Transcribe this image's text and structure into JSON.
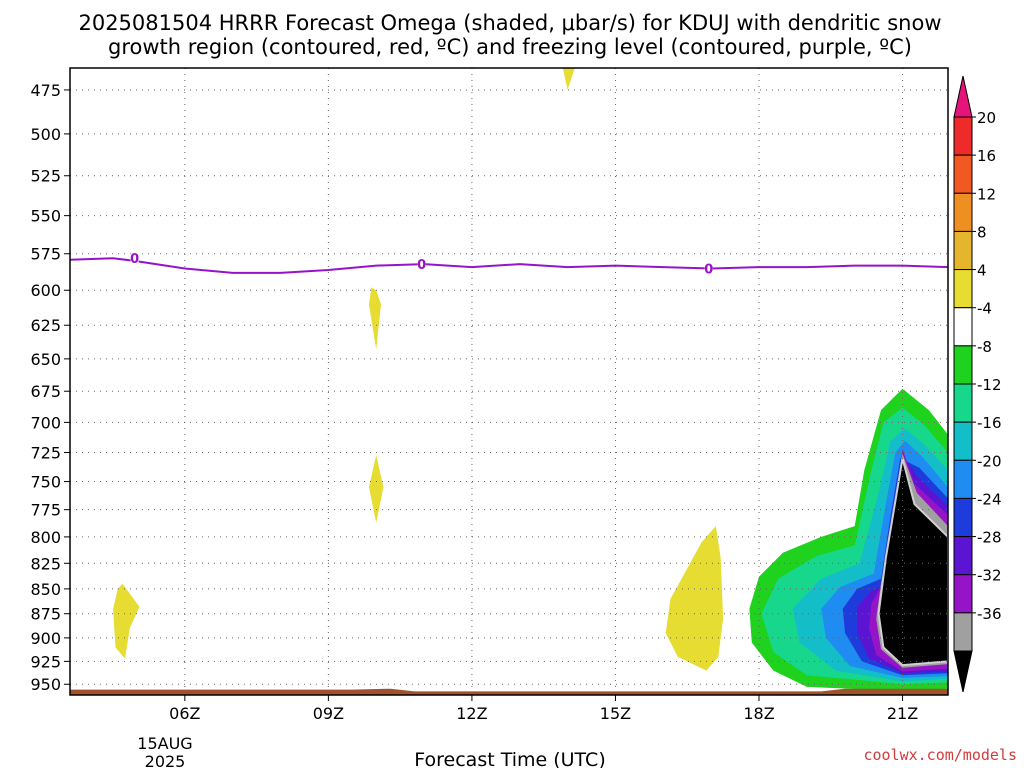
{
  "chart_data": {
    "type": "heatmap",
    "title_line1": "2025081504 HRRR Forecast Omega (shaded, μbar/s) for KDUJ with dendritic snow",
    "title_line2": "growth region (contoured, red, ºC) and freezing level (contoured, purple, ºC)",
    "xlabel": "Forecast Time (UTC)",
    "credit": "coolwx.com/models",
    "date_label_1": "15AUG",
    "date_label_2": "2025",
    "y_axis": {
      "ticks": [
        475,
        500,
        525,
        550,
        575,
        600,
        625,
        650,
        675,
        700,
        725,
        750,
        775,
        800,
        825,
        850,
        875,
        900,
        925,
        950
      ],
      "pressure_range": [
        463,
        962
      ],
      "inverted": true,
      "log_scale": true
    },
    "x_axis": {
      "range_hours": [
        3.6,
        21.95
      ],
      "ticks": [
        {
          "hour": 6,
          "label": "06Z"
        },
        {
          "hour": 9,
          "label": "09Z"
        },
        {
          "hour": 12,
          "label": "12Z"
        },
        {
          "hour": 15,
          "label": "15Z"
        },
        {
          "hour": 18,
          "label": "18Z"
        },
        {
          "hour": 21,
          "label": "21Z"
        }
      ]
    },
    "grid": true,
    "colorbar": {
      "labels": [
        "20",
        "16",
        "12",
        "8",
        "4",
        "-4",
        "-8",
        "-12",
        "-16",
        "-20",
        "-24",
        "-28",
        "-32",
        "-36"
      ],
      "colors": [
        "#ee2a2a",
        "#f05a22",
        "#ee8f22",
        "#e6b52e",
        "#e6dc32",
        "#ffffff",
        "#1ed21e",
        "#17d78c",
        "#14bec8",
        "#1e8cf0",
        "#1e3cdc",
        "#5a14d2",
        "#9614c8",
        "#a0a0a0"
      ],
      "top_arrow_color": "#e6147a",
      "bottom_arrow_color": "#000000"
    },
    "freezing_level": {
      "color": "#9614c8",
      "label": "0",
      "points": [
        [
          3.6,
          579
        ],
        [
          4.5,
          578
        ],
        [
          5.0,
          580
        ],
        [
          6.0,
          585
        ],
        [
          7.0,
          588
        ],
        [
          8.0,
          588
        ],
        [
          9.0,
          586
        ],
        [
          10.0,
          583
        ],
        [
          11.0,
          582
        ],
        [
          12.0,
          584
        ],
        [
          13.0,
          582
        ],
        [
          14.0,
          584
        ],
        [
          15.0,
          583
        ],
        [
          16.0,
          584
        ],
        [
          17.0,
          585
        ],
        [
          18.0,
          584
        ],
        [
          19.0,
          584
        ],
        [
          20.0,
          583
        ],
        [
          21.0,
          583
        ],
        [
          21.95,
          584
        ]
      ],
      "label_points": [
        [
          4.95,
          578
        ],
        [
          10.95,
          582
        ],
        [
          16.95,
          585
        ]
      ]
    },
    "omega_areas": [
      {
        "value": 4,
        "color": "#e6dc32",
        "points": [
          [
            4.7,
            845
          ],
          [
            5.05,
            868
          ],
          [
            4.85,
            890
          ],
          [
            4.75,
            922
          ],
          [
            4.55,
            910
          ],
          [
            4.5,
            870
          ],
          [
            4.6,
            850
          ]
        ]
      },
      {
        "value": 4,
        "color": "#e6dc32",
        "points": [
          [
            10.0,
            600
          ],
          [
            10.1,
            610
          ],
          [
            10.0,
            643
          ],
          [
            9.85,
            610
          ],
          [
            9.9,
            598
          ]
        ]
      },
      {
        "value": 4,
        "color": "#e6dc32",
        "points": [
          [
            10.0,
            727
          ],
          [
            10.15,
            755
          ],
          [
            10.0,
            787
          ],
          [
            9.85,
            755
          ]
        ]
      },
      {
        "value": 4,
        "color": "#e6dc32",
        "points": [
          [
            13.9,
            463
          ],
          [
            14.15,
            463
          ],
          [
            14.0,
            475
          ]
        ]
      },
      {
        "value": 4,
        "color": "#e6dc32",
        "points": [
          [
            17.1,
            790
          ],
          [
            17.2,
            820
          ],
          [
            17.25,
            880
          ],
          [
            17.15,
            920
          ],
          [
            16.9,
            935
          ],
          [
            16.3,
            920
          ],
          [
            16.05,
            895
          ],
          [
            16.15,
            860
          ],
          [
            16.5,
            830
          ],
          [
            16.8,
            805
          ]
        ]
      },
      {
        "value": -4,
        "color": "#1ed21e",
        "points": [
          [
            21.95,
            955
          ],
          [
            21.2,
            958
          ],
          [
            19.0,
            953
          ],
          [
            18.3,
            935
          ],
          [
            17.85,
            905
          ],
          [
            17.8,
            870
          ],
          [
            18.0,
            838
          ],
          [
            18.5,
            815
          ],
          [
            19.3,
            800
          ],
          [
            20.0,
            790
          ],
          [
            20.2,
            740
          ],
          [
            20.55,
            690
          ],
          [
            21.0,
            673
          ],
          [
            21.55,
            690
          ],
          [
            21.95,
            710
          ]
        ]
      },
      {
        "value": -8,
        "color": "#17d78c",
        "points": [
          [
            21.95,
            948
          ],
          [
            21.0,
            950
          ],
          [
            19.0,
            940
          ],
          [
            18.3,
            915
          ],
          [
            18.05,
            875
          ],
          [
            18.4,
            840
          ],
          [
            19.2,
            818
          ],
          [
            20.0,
            808
          ],
          [
            20.35,
            740
          ],
          [
            20.6,
            700
          ],
          [
            21.0,
            688
          ],
          [
            21.45,
            702
          ],
          [
            21.95,
            725
          ]
        ]
      },
      {
        "value": -12,
        "color": "#14bec8",
        "points": [
          [
            21.95,
            944
          ],
          [
            21.0,
            947
          ],
          [
            19.6,
            935
          ],
          [
            18.85,
            905
          ],
          [
            18.7,
            870
          ],
          [
            19.3,
            840
          ],
          [
            20.1,
            825
          ],
          [
            20.5,
            760
          ],
          [
            20.75,
            715
          ],
          [
            21.05,
            705
          ],
          [
            21.45,
            718
          ],
          [
            21.95,
            740
          ]
        ]
      },
      {
        "value": -16,
        "color": "#1e8cf0",
        "points": [
          [
            21.95,
            941
          ],
          [
            21.0,
            943
          ],
          [
            19.9,
            930
          ],
          [
            19.4,
            900
          ],
          [
            19.3,
            870
          ],
          [
            19.7,
            848
          ],
          [
            20.4,
            835
          ],
          [
            20.65,
            770
          ],
          [
            20.85,
            725
          ],
          [
            21.05,
            715
          ],
          [
            21.4,
            728
          ],
          [
            21.95,
            755
          ]
        ]
      },
      {
        "value": -20,
        "color": "#1e3cdc",
        "points": [
          [
            21.95,
            938
          ],
          [
            21.0,
            940
          ],
          [
            20.15,
            925
          ],
          [
            19.8,
            895
          ],
          [
            19.75,
            870
          ],
          [
            20.05,
            850
          ],
          [
            20.55,
            840
          ],
          [
            20.75,
            780
          ],
          [
            20.95,
            730
          ],
          [
            21.35,
            738
          ],
          [
            21.95,
            765
          ]
        ]
      },
      {
        "value": -24,
        "color": "#5a14d2",
        "points": [
          [
            21.95,
            936
          ],
          [
            21.0,
            938
          ],
          [
            20.3,
            922
          ],
          [
            20.05,
            895
          ],
          [
            20.05,
            868
          ],
          [
            20.35,
            852
          ],
          [
            20.65,
            845
          ],
          [
            20.9,
            770
          ],
          [
            21.0,
            727
          ],
          [
            21.3,
            745
          ],
          [
            21.95,
            772
          ]
        ]
      },
      {
        "value": -28,
        "color": "#9614c8",
        "points": [
          [
            21.95,
            933
          ],
          [
            21.0,
            936
          ],
          [
            20.45,
            918
          ],
          [
            20.3,
            890
          ],
          [
            20.35,
            865
          ],
          [
            20.5,
            852
          ],
          [
            20.75,
            815
          ],
          [
            21.0,
            722
          ],
          [
            21.25,
            752
          ],
          [
            21.95,
            780
          ]
        ]
      },
      {
        "value": -32,
        "color": "#a0a0a0",
        "points": [
          [
            21.95,
            928
          ],
          [
            21.0,
            932
          ],
          [
            20.55,
            912
          ],
          [
            20.45,
            880
          ],
          [
            20.55,
            845
          ],
          [
            20.75,
            790
          ],
          [
            21.0,
            726
          ],
          [
            21.3,
            760
          ],
          [
            21.95,
            790
          ]
        ]
      },
      {
        "value": -36,
        "color": "#000000",
        "points": [
          [
            21.95,
            925
          ],
          [
            21.0,
            929
          ],
          [
            20.6,
            910
          ],
          [
            20.5,
            875
          ],
          [
            20.65,
            820
          ],
          [
            20.8,
            780
          ],
          [
            21.0,
            730
          ],
          [
            21.25,
            770
          ],
          [
            21.95,
            800
          ]
        ]
      }
    ],
    "terrain": {
      "color": "#a0522d",
      "points": [
        [
          3.6,
          956
        ],
        [
          9.5,
          956
        ],
        [
          10.3,
          955
        ],
        [
          10.8,
          958
        ],
        [
          19.3,
          958
        ],
        [
          19.8,
          955
        ],
        [
          21.95,
          955
        ]
      ]
    }
  }
}
